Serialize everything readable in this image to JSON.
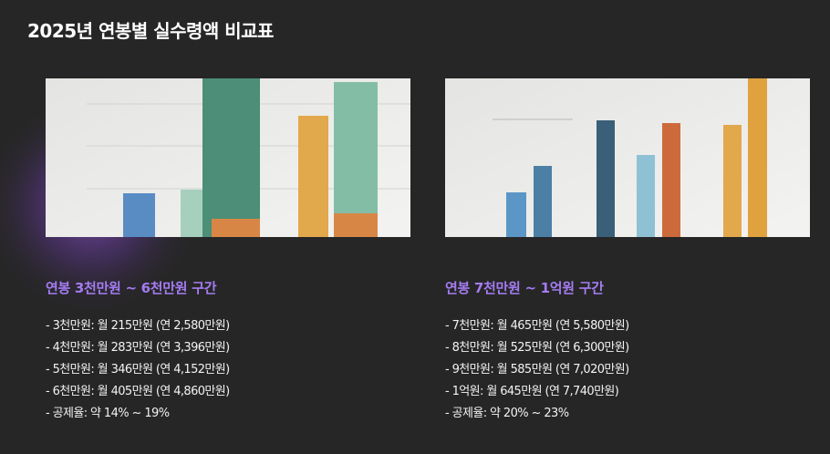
{
  "title": "2025년 연봉별 실수령액 비교표",
  "sections": [
    {
      "heading": "연봉 3천만원 ~ 6천만원 구간",
      "items": [
        "- 3천만원: 월 215만원 (연 2,580만원)",
        "- 4천만원: 월 283만원 (연 3,396만원)",
        "- 5천만원: 월 346만원 (연 4,152만원)",
        "- 6천만원: 월 405만원 (연 4,860만원)",
        "- 공제율: 약 14% ~ 19%"
      ]
    },
    {
      "heading": "연봉 7천만원 ~ 1억원 구간",
      "items": [
        "- 7천만원: 월 465만원 (연 5,580만원)",
        "- 8천만원: 월 525만원 (연 6,300만원)",
        "- 9천만원: 월 585만원 (연 7,020만원)",
        "- 1억원: 월 645만원 (연 7,740만원)",
        "- 공제율: 약 20% ~ 23%"
      ]
    }
  ]
}
